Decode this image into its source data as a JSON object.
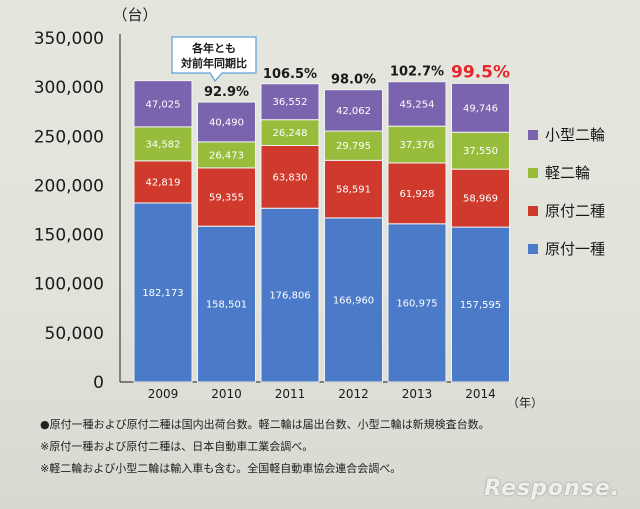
{
  "chart_data": {
    "type": "bar",
    "stacked": true,
    "categories": [
      "2009",
      "2010",
      "2011",
      "2012",
      "2013",
      "2014"
    ],
    "series": [
      {
        "name": "原付一種",
        "color": "#4a7ac8",
        "values": [
          182173,
          158501,
          176806,
          166960,
          160975,
          157595
        ]
      },
      {
        "name": "原付二種",
        "color": "#cf3a2c",
        "values": [
          42819,
          59355,
          63830,
          58591,
          61928,
          58969
        ]
      },
      {
        "name": "軽二輪",
        "color": "#98bd3c",
        "values": [
          34582,
          26473,
          26248,
          29795,
          37376,
          37550
        ]
      },
      {
        "name": "小型二輪",
        "color": "#7a64ae",
        "values": [
          47025,
          40490,
          36552,
          42062,
          45254,
          49746
        ]
      }
    ],
    "yoy_labels": [
      "",
      "92.9%",
      "106.5%",
      "98.0%",
      "102.7%",
      "99.5%"
    ],
    "yoy_highlight_color": "#e8262a",
    "yunit": "（台）",
    "xunit": "（年）",
    "ylim": [
      0,
      350000
    ],
    "yticks": [
      "0",
      "50,000",
      "100,000",
      "150,000",
      "200,000",
      "250,000",
      "300,000",
      "350,000"
    ],
    "callout": [
      "各年とも",
      "対前年同期比"
    ],
    "legend_position": "right"
  },
  "notes": [
    "●原付一種および原付二種は国内出荷台数。軽二輪は届出台数、小型二輪は新規検査台数。",
    "※原付一種および原付二種は、日本自動車工業会調べ。",
    "※軽二輪および小型二輪は輸入車も含む。全国軽自動車協会連合会調べ。"
  ],
  "watermark": "Response."
}
